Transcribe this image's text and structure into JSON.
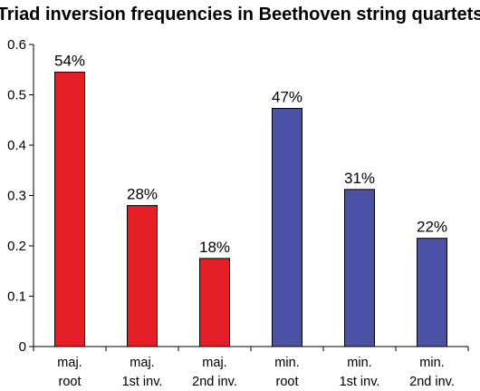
{
  "chart_data": {
    "type": "bar",
    "title": "Triad inversion frequencies in Beethoven string quartets",
    "xlabel": "",
    "ylabel": "",
    "ylim": [
      0,
      0.6
    ],
    "yticks": [
      "0",
      "0.1",
      "0.2",
      "0.3",
      "0.4",
      "0.5",
      "0.6"
    ],
    "grid": false,
    "legend": "none",
    "categories": [
      [
        "maj.",
        "root"
      ],
      [
        "maj.",
        "1st inv."
      ],
      [
        "maj.",
        "2nd inv."
      ],
      [
        "min.",
        "root"
      ],
      [
        "min.",
        "1st inv."
      ],
      [
        "min.",
        "2nd inv."
      ]
    ],
    "values": [
      0.545,
      0.28,
      0.175,
      0.473,
      0.312,
      0.215
    ],
    "data_labels": [
      "54%",
      "28%",
      "18%",
      "47%",
      "31%",
      "22%"
    ],
    "bar_colors": [
      "#e31e24",
      "#e31e24",
      "#e31e24",
      "#4b52a6",
      "#4b52a6",
      "#4b52a6"
    ],
    "bar_outline": "#000000"
  }
}
